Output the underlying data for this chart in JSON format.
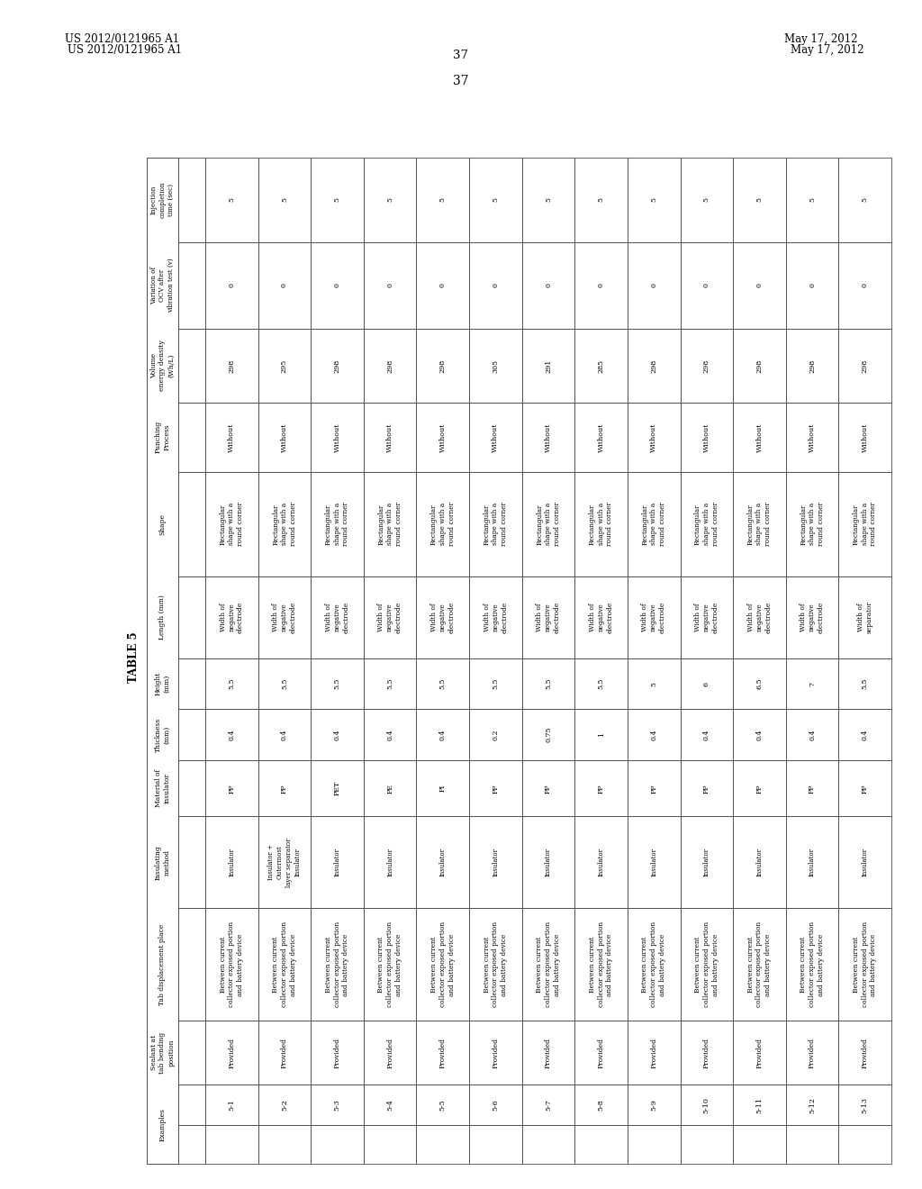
{
  "header_left": "US 2012/0121965 A1",
  "header_right": "May 17, 2012",
  "page_number": "37",
  "table_title": "TABLE 5",
  "background_color": "#ffffff",
  "text_color": "#000000",
  "col_headers": [
    "",
    "",
    "Sealant at\ntab bending\nposition",
    "Tab displacement place",
    "Insulating\nmethod",
    "Material of\ninsulator",
    "Thickness\n(mm)",
    "Height\n(mm)",
    "Length (mm)",
    "Shape",
    "Punching\nProcess",
    "Volume\nenergy density\n(Wh/L)",
    "Variation of\nOCV after\nvibration test (v)",
    "Injection\ncompletion\ntime (sec)"
  ],
  "rows": [
    [
      "Examples",
      "5-1",
      "Provided",
      "Between current\ncollector exposed portion\nand battery device",
      "Insulator",
      "PP",
      "0.4",
      "5.5",
      "Width of\nnegative\nelectrode",
      "Rectangular\nshape with a\nround corner",
      "Without",
      "298",
      "0",
      "5"
    ],
    [
      "",
      "5-2",
      "Provided",
      "Between current\ncollector exposed portion\nand battery device",
      "Insulator +\nOutermost\nlayer separator\nInsulator",
      "PP",
      "0.4",
      "5.5",
      "Width of\nnegative\nelectrode",
      "Rectangular\nshape with a\nround corner",
      "Without",
      "295",
      "0",
      "5"
    ],
    [
      "",
      "5-3",
      "Provided",
      "Between current\ncollector exposed portion\nand battery device",
      "Insulator",
      "PET",
      "0.4",
      "5.5",
      "Width of\nnegative\nelectrode",
      "Rectangular\nshape with a\nround corner",
      "Without",
      "298",
      "0",
      "5"
    ],
    [
      "",
      "5-4",
      "Provided",
      "Between current\ncollector exposed portion\nand battery device",
      "Insulator",
      "PE",
      "0.4",
      "5.5",
      "Width of\nnegative\nelectrode",
      "Rectangular\nshape with a\nround corner",
      "Without",
      "298",
      "0",
      "5"
    ],
    [
      "",
      "5-5",
      "Provided",
      "Between current\ncollector exposed portion\nand battery device",
      "Insulator",
      "PI",
      "0.4",
      "5.5",
      "Width of\nnegative\nelectrode",
      "Rectangular\nshape with a\nround corner",
      "Without",
      "298",
      "0",
      "5"
    ],
    [
      "",
      "5-6",
      "Provided",
      "Between current\ncollector exposed portion\nand battery device",
      "Insulator",
      "PP",
      "0.2",
      "5.5",
      "Width of\nnegative\nelectrode",
      "Rectangular\nshape with a\nround corner",
      "Without",
      "305",
      "0",
      "5"
    ],
    [
      "",
      "5-7",
      "Provided",
      "Between current\ncollector exposed portion\nand battery device",
      "Insulator",
      "PP",
      "0.75",
      "5.5",
      "Width of\nnegative\nelectrode",
      "Rectangular\nshape with a\nround corner",
      "Without",
      "291",
      "0",
      "5"
    ],
    [
      "",
      "5-8",
      "Provided",
      "Between current\ncollector exposed portion\nand battery device",
      "Insulator",
      "PP",
      "1",
      "5.5",
      "Width of\nnegative\nelectrode",
      "Rectangular\nshape with a\nround corner",
      "Without",
      "285",
      "0",
      "5"
    ],
    [
      "",
      "5-9",
      "Provided",
      "Between current\ncollector exposed portion\nand battery device",
      "Insulator",
      "PP",
      "0.4",
      "5",
      "Width of\nnegative\nelectrode",
      "Rectangular\nshape with a\nround corner",
      "Without",
      "298",
      "0",
      "5"
    ],
    [
      "",
      "5-10",
      "Provided",
      "Between current\ncollector exposed portion\nand battery device",
      "Insulator",
      "PP",
      "0.4",
      "6",
      "Width of\nnegative\nelectrode",
      "Rectangular\nshape with a\nround corner",
      "Without",
      "298",
      "0",
      "5"
    ],
    [
      "",
      "5-11",
      "Provided",
      "Between current\ncollector exposed portion\nand battery device",
      "Insulator",
      "PP",
      "0.4",
      "6.5",
      "Width of\nnegative\nelectrode",
      "Rectangular\nshape with a\nround corner",
      "Without",
      "298",
      "0",
      "5"
    ],
    [
      "",
      "5-12",
      "Provided",
      "Between current\ncollector exposed portion\nand battery device",
      "Insulator",
      "PP",
      "0.4",
      "7",
      "Width of\nnegative\nelectrode",
      "Rectangular\nshape with a\nround corner",
      "Without",
      "298",
      "0",
      "5"
    ],
    [
      "",
      "5-13",
      "Provided",
      "Between current\ncollector exposed portion\nand battery device",
      "Insulator",
      "PP",
      "0.4",
      "5.5",
      "Width of\nseparator",
      "Rectangular\nshape with a\nround corner",
      "Without",
      "298",
      "0",
      "5"
    ]
  ]
}
